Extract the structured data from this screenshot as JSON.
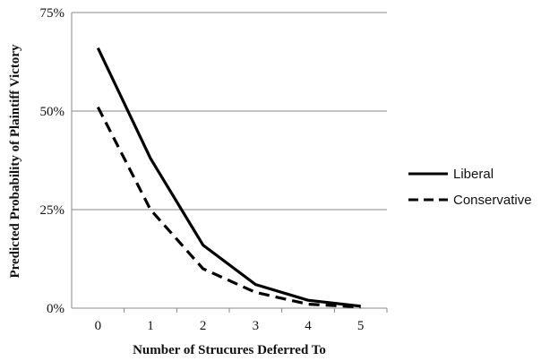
{
  "chart_data": {
    "type": "line",
    "xlabel": "Number of Strucures Deferred To",
    "ylabel": "Predicted Probability of Plaintiff Victory",
    "x": [
      0,
      1,
      2,
      3,
      4,
      5
    ],
    "x_tick_labels": [
      "0",
      "1",
      "2",
      "3",
      "4",
      "5"
    ],
    "y_tick_labels": [
      "0%",
      "25%",
      "50%",
      "75%"
    ],
    "y_ticks": [
      0,
      25,
      50,
      75
    ],
    "ylim": [
      0,
      75
    ],
    "grid": true,
    "legend_position": "right",
    "series": [
      {
        "name": "Liberal",
        "values": [
          66,
          38,
          16,
          6,
          2,
          0.5
        ],
        "color": "#000000",
        "style": "solid"
      },
      {
        "name": "Conservative",
        "values": [
          51,
          25,
          10,
          4,
          1,
          0.3
        ],
        "color": "#000000",
        "style": "dashed"
      }
    ]
  }
}
